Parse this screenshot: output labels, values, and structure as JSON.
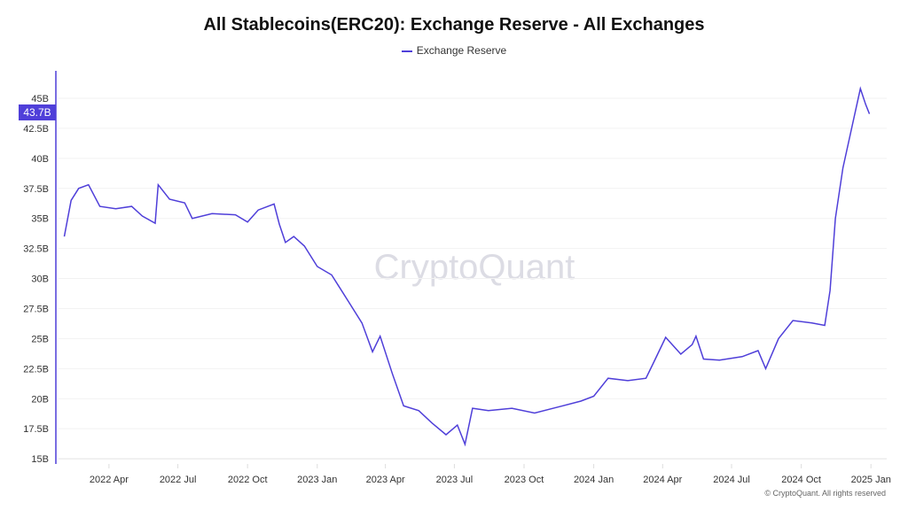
{
  "chart_data": {
    "type": "line",
    "title": "All Stablecoins(ERC20): Exchange Reserve - All Exchanges",
    "watermark": "CryptoQuant",
    "copyright": "© CryptoQuant. All rights reserved",
    "legend_position": "top",
    "grid": true,
    "ylim": [
      15,
      47
    ],
    "xlim": [
      "2022-01-20",
      "2025-01-10"
    ],
    "y_ticks": [
      15,
      17.5,
      20,
      22.5,
      25,
      27.5,
      30,
      32.5,
      35,
      37.5,
      40,
      42.5,
      45
    ],
    "y_tick_labels": [
      "15B",
      "17.5B",
      "20B",
      "22.5B",
      "25B",
      "27.5B",
      "30B",
      "32.5B",
      "35B",
      "37.5B",
      "40B",
      "42.5B",
      "45B"
    ],
    "x_ticks": [
      "2022-04-01",
      "2022-07-01",
      "2022-10-01",
      "2023-01-01",
      "2023-04-01",
      "2023-07-01",
      "2023-10-01",
      "2024-01-01",
      "2024-04-01",
      "2024-07-01",
      "2024-10-01",
      "2025-01-01"
    ],
    "x_tick_labels": [
      "2022 Apr",
      "2022 Jul",
      "2022 Oct",
      "2023 Jan",
      "2023 Apr",
      "2023 Jul",
      "2023 Oct",
      "2024 Jan",
      "2024 Apr",
      "2024 Jul",
      "2024 Oct",
      "2025 Jan"
    ],
    "current_value_label": "43.7B",
    "series": [
      {
        "name": "Exchange Reserve",
        "color": "#4f3fd9",
        "unit": "B",
        "x": [
          "2022-02-01",
          "2022-02-10",
          "2022-02-20",
          "2022-03-05",
          "2022-03-20",
          "2022-04-10",
          "2022-05-01",
          "2022-05-15",
          "2022-06-01",
          "2022-06-05",
          "2022-06-20",
          "2022-07-10",
          "2022-07-20",
          "2022-08-15",
          "2022-09-15",
          "2022-10-01",
          "2022-10-15",
          "2022-11-05",
          "2022-11-12",
          "2022-11-20",
          "2022-12-01",
          "2022-12-15",
          "2023-01-01",
          "2023-01-20",
          "2023-02-10",
          "2023-03-01",
          "2023-03-15",
          "2023-03-25",
          "2023-04-10",
          "2023-04-25",
          "2023-05-15",
          "2023-06-01",
          "2023-06-20",
          "2023-07-05",
          "2023-07-15",
          "2023-07-25",
          "2023-08-15",
          "2023-09-15",
          "2023-10-15",
          "2023-11-15",
          "2023-12-15",
          "2024-01-01",
          "2024-01-20",
          "2024-02-15",
          "2024-03-10",
          "2024-03-20",
          "2024-04-05",
          "2024-04-25",
          "2024-05-10",
          "2024-05-15",
          "2024-05-25",
          "2024-06-15",
          "2024-07-15",
          "2024-08-05",
          "2024-08-15",
          "2024-09-01",
          "2024-09-20",
          "2024-10-15",
          "2024-11-01",
          "2024-11-08",
          "2024-11-15",
          "2024-11-25",
          "2024-12-10",
          "2024-12-18",
          "2024-12-25",
          "2024-12-30"
        ],
        "y": [
          33.5,
          36.5,
          37.5,
          37.8,
          36.0,
          35.8,
          36.0,
          35.2,
          34.6,
          37.8,
          36.6,
          36.3,
          35.0,
          35.4,
          35.3,
          34.7,
          35.7,
          36.2,
          34.5,
          33.0,
          33.5,
          32.7,
          31.0,
          30.3,
          28.2,
          26.3,
          23.9,
          25.2,
          22.1,
          19.4,
          19.0,
          18.0,
          17.0,
          17.8,
          16.2,
          19.2,
          19.0,
          19.2,
          18.8,
          19.3,
          19.8,
          20.2,
          21.7,
          21.5,
          21.7,
          23.0,
          25.1,
          23.7,
          24.5,
          25.2,
          23.3,
          23.2,
          23.5,
          24.0,
          22.5,
          25.0,
          26.5,
          26.3,
          26.1,
          29.0,
          35.0,
          39.2,
          43.5,
          45.8,
          44.5,
          43.7
        ]
      }
    ]
  }
}
